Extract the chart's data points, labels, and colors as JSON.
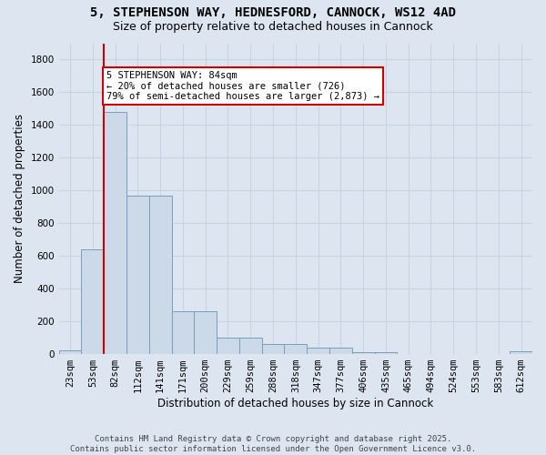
{
  "title_line1": "5, STEPHENSON WAY, HEDNESFORD, CANNOCK, WS12 4AD",
  "title_line2": "Size of property relative to detached houses in Cannock",
  "xlabel": "Distribution of detached houses by size in Cannock",
  "ylabel": "Number of detached properties",
  "categories": [
    "23sqm",
    "53sqm",
    "82sqm",
    "112sqm",
    "141sqm",
    "171sqm",
    "200sqm",
    "229sqm",
    "259sqm",
    "288sqm",
    "318sqm",
    "347sqm",
    "377sqm",
    "406sqm",
    "435sqm",
    "465sqm",
    "494sqm",
    "524sqm",
    "553sqm",
    "583sqm",
    "612sqm"
  ],
  "values": [
    25,
    640,
    1480,
    970,
    970,
    260,
    260,
    100,
    100,
    60,
    60,
    40,
    40,
    10,
    10,
    0,
    0,
    0,
    0,
    0,
    15
  ],
  "bar_color": "#ccd9e8",
  "bar_edge_color": "#7a9dbe",
  "grid_color": "#c8d4e3",
  "background_color": "#dde6f0",
  "vline_color": "#cc0000",
  "annotation_text": "5 STEPHENSON WAY: 84sqm\n← 20% of detached houses are smaller (726)\n79% of semi-detached houses are larger (2,873) →",
  "annotation_box_color": "#ffffff",
  "annotation_box_edge": "#cc0000",
  "ylim": [
    0,
    1900
  ],
  "yticks": [
    0,
    200,
    400,
    600,
    800,
    1000,
    1200,
    1400,
    1600,
    1800
  ],
  "footer": "Contains HM Land Registry data © Crown copyright and database right 2025.\nContains public sector information licensed under the Open Government Licence v3.0.",
  "title_fontsize": 10,
  "subtitle_fontsize": 9,
  "tick_fontsize": 7.5,
  "label_fontsize": 8.5
}
